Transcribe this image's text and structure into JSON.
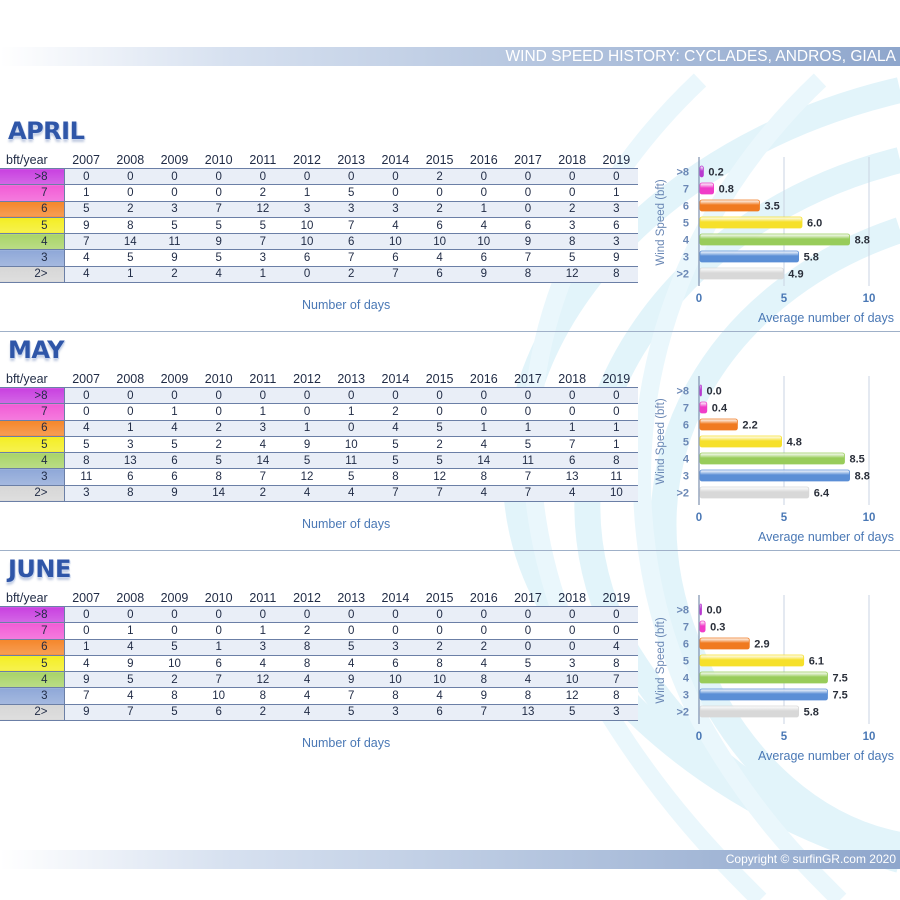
{
  "header": {
    "title": "WIND SPEED HISTORY: CYCLADES, ANDROS, GIALA"
  },
  "footer": {
    "copyright": "Copyright © surfinGR.com 2020"
  },
  "table_corner_label": "bft/year",
  "table_x_label": "Number of days",
  "years": [
    "2007",
    "2008",
    "2009",
    "2010",
    "2011",
    "2012",
    "2013",
    "2014",
    "2015",
    "2016",
    "2017",
    "2018",
    "2019"
  ],
  "row_labels": [
    ">8",
    "7",
    "6",
    "5",
    "4",
    "3",
    "2>"
  ],
  "colors": {
    ">8": "#c941e0",
    "7": "#f25cd6",
    "6": "#f5862a",
    "5": "#f4ee22",
    "4": "#a9d468",
    "3": "#8fa8d8",
    "2>": "#d6d6d6"
  },
  "bar_colors": [
    "#b83ad0",
    "#f03cc8",
    "#f07a20",
    "#f6e02a",
    "#98cc5a",
    "#5b8fd6",
    "#d8d8d8"
  ],
  "months": [
    {
      "name": "APRIL",
      "rows": [
        [
          0,
          0,
          0,
          0,
          0,
          0,
          0,
          0,
          2,
          0,
          0,
          0,
          0
        ],
        [
          1,
          0,
          0,
          0,
          2,
          1,
          5,
          0,
          0,
          0,
          0,
          0,
          1
        ],
        [
          5,
          2,
          3,
          7,
          12,
          3,
          3,
          3,
          2,
          1,
          0,
          2,
          3
        ],
        [
          9,
          8,
          5,
          5,
          5,
          10,
          7,
          4,
          6,
          4,
          6,
          3,
          6
        ],
        [
          7,
          14,
          11,
          9,
          7,
          10,
          6,
          10,
          10,
          10,
          9,
          8,
          3
        ],
        [
          4,
          5,
          9,
          5,
          3,
          6,
          7,
          6,
          4,
          6,
          7,
          5,
          9
        ],
        [
          4,
          1,
          2,
          4,
          1,
          0,
          2,
          7,
          6,
          9,
          8,
          12,
          8
        ]
      ]
    },
    {
      "name": "MAY",
      "rows": [
        [
          0,
          0,
          0,
          0,
          0,
          0,
          0,
          0,
          0,
          0,
          0,
          0,
          0
        ],
        [
          0,
          0,
          1,
          0,
          1,
          0,
          1,
          2,
          0,
          0,
          0,
          0,
          0
        ],
        [
          4,
          1,
          4,
          2,
          3,
          1,
          0,
          4,
          5,
          1,
          1,
          1,
          1
        ],
        [
          5,
          3,
          5,
          2,
          4,
          9,
          10,
          5,
          2,
          4,
          5,
          7,
          1
        ],
        [
          8,
          13,
          6,
          5,
          14,
          5,
          11,
          5,
          5,
          14,
          11,
          6,
          8
        ],
        [
          11,
          6,
          6,
          8,
          7,
          12,
          5,
          8,
          12,
          8,
          7,
          13,
          11
        ],
        [
          3,
          8,
          9,
          14,
          2,
          4,
          4,
          7,
          7,
          4,
          7,
          4,
          10
        ]
      ]
    },
    {
      "name": "JUNE",
      "rows": [
        [
          0,
          0,
          0,
          0,
          0,
          0,
          0,
          0,
          0,
          0,
          0,
          0,
          0
        ],
        [
          0,
          1,
          0,
          0,
          1,
          2,
          0,
          0,
          0,
          0,
          0,
          0,
          0
        ],
        [
          1,
          4,
          5,
          1,
          3,
          8,
          5,
          3,
          2,
          2,
          0,
          0,
          4
        ],
        [
          4,
          9,
          10,
          6,
          4,
          8,
          4,
          6,
          8,
          4,
          5,
          3,
          8
        ],
        [
          9,
          5,
          2,
          7,
          12,
          4,
          9,
          10,
          10,
          8,
          4,
          10,
          7
        ],
        [
          7,
          4,
          8,
          10,
          8,
          4,
          7,
          8,
          4,
          9,
          8,
          12,
          8
        ],
        [
          9,
          7,
          5,
          6,
          2,
          4,
          5,
          3,
          6,
          7,
          13,
          5,
          3
        ]
      ]
    }
  ],
  "chart_data": [
    {
      "type": "bar",
      "orientation": "horizontal",
      "month": "APRIL",
      "categories": [
        ">8",
        "7",
        "6",
        "5",
        "4",
        "3",
        ">2"
      ],
      "values": [
        0.2,
        0.8,
        3.5,
        6.0,
        8.8,
        5.8,
        4.9
      ],
      "value_labels": [
        "0.2",
        "0.8",
        "3.5",
        "6.0",
        "8.8",
        "5.8",
        "4.9"
      ],
      "xlabel": "Average number of days",
      "ylabel": "Wind Speed (bft)",
      "xlim": [
        0,
        10
      ],
      "xticks": [
        "0",
        "5",
        "10"
      ]
    },
    {
      "type": "bar",
      "orientation": "horizontal",
      "month": "MAY",
      "categories": [
        ">8",
        "7",
        "6",
        "5",
        "4",
        "3",
        ">2"
      ],
      "values": [
        0.0,
        0.4,
        2.2,
        4.8,
        8.5,
        8.8,
        6.4
      ],
      "value_labels": [
        "0.0",
        "0.4",
        "2.2",
        "4.8",
        "8.5",
        "8.8",
        "6.4"
      ],
      "xlabel": "Average number of days",
      "ylabel": "Wind Speed (bft)",
      "xlim": [
        0,
        10
      ],
      "xticks": [
        "0",
        "5",
        "10"
      ]
    },
    {
      "type": "bar",
      "orientation": "horizontal",
      "month": "JUNE",
      "categories": [
        ">8",
        "7",
        "6",
        "5",
        "4",
        "3",
        ">2"
      ],
      "values": [
        0.0,
        0.3,
        2.9,
        6.1,
        7.5,
        7.5,
        5.8
      ],
      "value_labels": [
        "0.0",
        "0.3",
        "2.9",
        "6.1",
        "7.5",
        "7.5",
        "5.8"
      ],
      "xlabel": "Average number of days",
      "ylabel": "Wind Speed (bft)",
      "xlim": [
        0,
        10
      ],
      "xticks": [
        "0",
        "5",
        "10"
      ]
    }
  ]
}
